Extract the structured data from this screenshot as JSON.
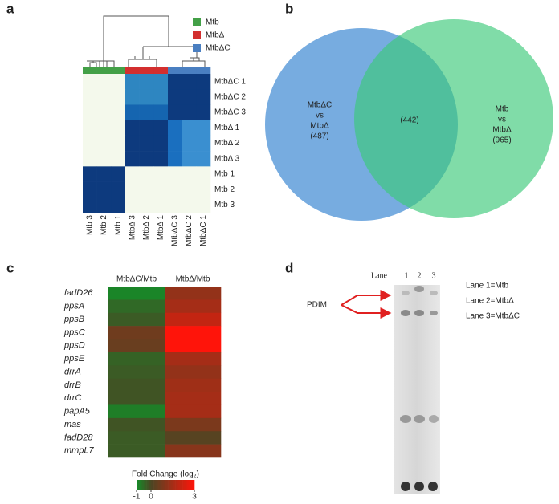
{
  "panels": {
    "a": {
      "label": "a",
      "legend": [
        {
          "text": "Mtb",
          "color": "#43a047"
        },
        {
          "text": "MtbΔ",
          "color": "#d32f2f"
        },
        {
          "text": "MtbΔC",
          "color": "#4a7fc1"
        }
      ],
      "row_labels": [
        "MtbΔC 1",
        "MtbΔC 2",
        "MtbΔC 3",
        "MtbΔ 1",
        "MtbΔ 2",
        "MtbΔ 3",
        "Mtb 1",
        "Mtb 2",
        "Mtb 3"
      ],
      "col_labels": [
        "Mtb 3",
        "Mtb 2",
        "Mtb 1",
        "MtbΔ 3",
        "MtbΔ 2",
        "MtbΔ 1",
        "MtbΔC 3",
        "MtbΔC 2",
        "MtbΔC 1"
      ]
    },
    "b": {
      "label": "b",
      "left": [
        "MtbΔC",
        "vs",
        "MtbΔ",
        "(487)"
      ],
      "overlap": "(442)",
      "right": [
        "Mtb",
        "vs",
        "MtbΔ",
        "(965)"
      ]
    },
    "c": {
      "label": "c",
      "columns": [
        "MtbΔC/Mtb",
        "MtbΔ/Mtb"
      ],
      "rows": [
        "fadD26",
        "ppsA",
        "ppsB",
        "ppsC",
        "ppsD",
        "ppsE",
        "drrA",
        "drrB",
        "drrC",
        "papA5",
        "mas",
        "fadD28",
        "mmpL7"
      ],
      "values": [
        [
          -0.9,
          1.2
        ],
        [
          -0.5,
          1.5
        ],
        [
          -0.3,
          2.0
        ],
        [
          0.6,
          3
        ],
        [
          0.5,
          3
        ],
        [
          -0.4,
          1.5
        ],
        [
          -0.3,
          1.2
        ],
        [
          -0.2,
          1.4
        ],
        [
          -0.2,
          1.5
        ],
        [
          -0.8,
          1.5
        ],
        [
          -0.2,
          0.8
        ],
        [
          -0.3,
          0.2
        ],
        [
          -0.3,
          1.0
        ]
      ],
      "colorbar": {
        "title": "Fold Change (log₂)",
        "lim": [
          -1,
          3
        ],
        "ticks": [
          -1,
          0,
          3
        ]
      }
    },
    "d": {
      "label": "d",
      "lane_title": "Lane",
      "lanes": [
        "1",
        "2",
        "3"
      ],
      "arrow_label": "PDIM",
      "legend": [
        "Lane 1=Mtb",
        "Lane 2=MtbΔ",
        "Lane 3=MtbΔC"
      ]
    }
  }
}
